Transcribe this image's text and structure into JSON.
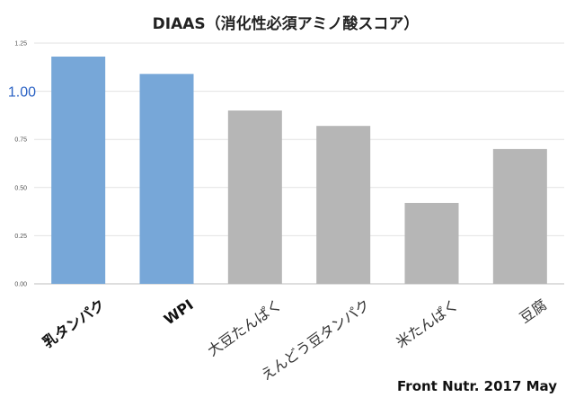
{
  "chart_data": {
    "type": "bar",
    "title": "DIAAS（消化性必須アミノ酸スコア）",
    "categories": [
      "乳タンパク",
      "WPI",
      "大豆たんぱく",
      "えんどう豆タンパク",
      "米たんぱく",
      "豆腐"
    ],
    "values": [
      1.18,
      1.09,
      0.9,
      0.82,
      0.42,
      0.7
    ],
    "bar_colors": [
      "#77a7d8",
      "#77a7d8",
      "#b6b6b6",
      "#b6b6b6",
      "#b6b6b6",
      "#b6b6b6"
    ],
    "bold_categories": [
      true,
      true,
      false,
      false,
      false,
      false
    ],
    "ylim": [
      0,
      1.25
    ],
    "yticks": [
      "0.00",
      "0.25",
      "0.50",
      "0.75",
      "1.00",
      "1.25"
    ],
    "highlighted_ytick": "1.00",
    "highlight_color": "#2b62c4",
    "grid": true,
    "xlabel": "",
    "ylabel": "",
    "source": "Front Nutr. 2017 May"
  }
}
